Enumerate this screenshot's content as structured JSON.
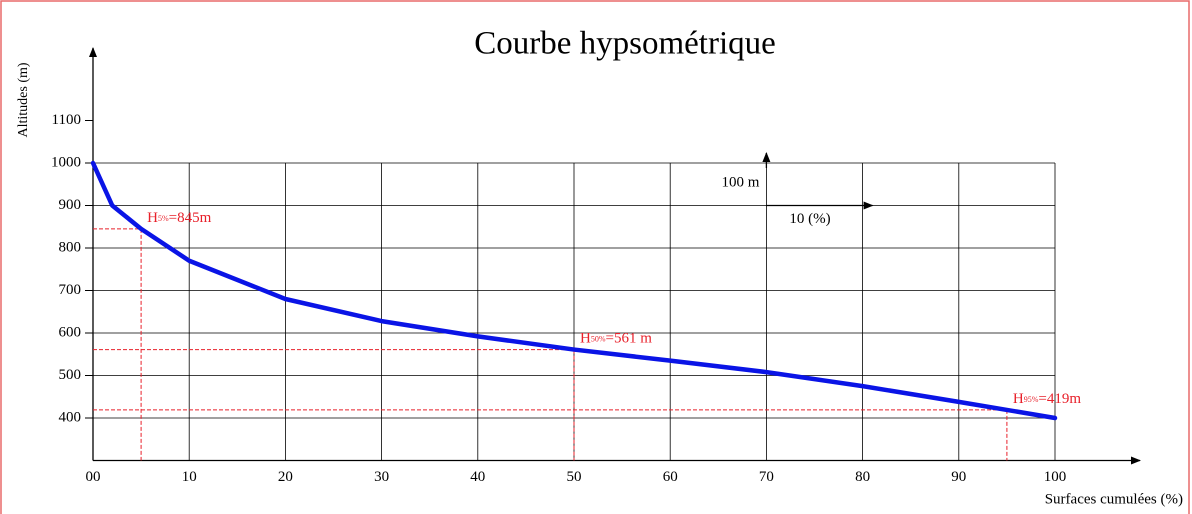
{
  "chart_data": {
    "type": "line",
    "title": "Courbe hypsométrique",
    "ylabel": "Altitudes (m)",
    "xlabel": "Surfaces cumulées (%)",
    "xlim": [
      0,
      100
    ],
    "ylim": [
      300,
      1100
    ],
    "xticks": [
      {
        "value": 0,
        "label": "00"
      },
      10,
      20,
      30,
      40,
      50,
      60,
      70,
      80,
      90,
      100
    ],
    "yticks": [
      400,
      500,
      600,
      700,
      800,
      900,
      1000,
      1100
    ],
    "grid": true,
    "series": [
      {
        "color": "#0a14e6",
        "x": [
          0,
          2,
          5,
          10,
          20,
          30,
          40,
          50,
          60,
          70,
          80,
          90,
          95,
          100
        ],
        "values": [
          1000,
          900,
          845,
          770,
          680,
          628,
          592,
          561,
          535,
          508,
          475,
          438,
          419,
          400
        ]
      }
    ],
    "annotations": [
      {
        "x": 5,
        "y": 845,
        "label": "H",
        "subscript": "5%",
        "text": "=845m"
      },
      {
        "x": 50,
        "y": 561,
        "label": "H",
        "subscript": "50%",
        "text": "=561 m"
      },
      {
        "x": 95,
        "y": 419,
        "label": "H",
        "subscript": "95%",
        "text": "=419m"
      }
    ],
    "annotation_color": "#e8202a",
    "scale_legend": {
      "y_text": "100 m",
      "x_text": "10 (%)"
    }
  }
}
